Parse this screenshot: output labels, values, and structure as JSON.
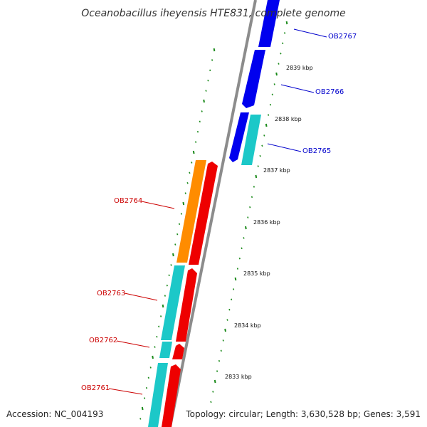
{
  "title": "Oceanobacillus iheyensis HTE831, complete genome",
  "footer": {
    "accession": "Accession: NC_004193",
    "summary": "Topology: circular; Length: 3,630,528 bp; Genes: 3,591"
  },
  "colors": {
    "backbone": "#8c8c8c",
    "tick": "#1a8a1a",
    "forward_label": "#0000cc",
    "reverse_label": "#cc0000",
    "blue": "#0000ee",
    "cyan": "#1cc8c8",
    "red": "#ee0000",
    "orange": "#ff8c00"
  },
  "kbp_labels": [
    "2839 kbp",
    "2838 kbp",
    "2837 kbp",
    "2836 kbp",
    "2835 kbp",
    "2834 kbp",
    "2833 kbp"
  ],
  "forward_genes": [
    {
      "label": "OB2767",
      "color": "blue"
    },
    {
      "label": "OB2766",
      "color": "blue"
    },
    {
      "label": "OB2765",
      "color": "blue"
    }
  ],
  "reverse_genes": [
    {
      "label": "OB2764",
      "color": "red"
    },
    {
      "label": "OB2763",
      "color": "red"
    },
    {
      "label": "OB2762",
      "color": "red"
    },
    {
      "label": "OB2761",
      "color": "red"
    }
  ]
}
